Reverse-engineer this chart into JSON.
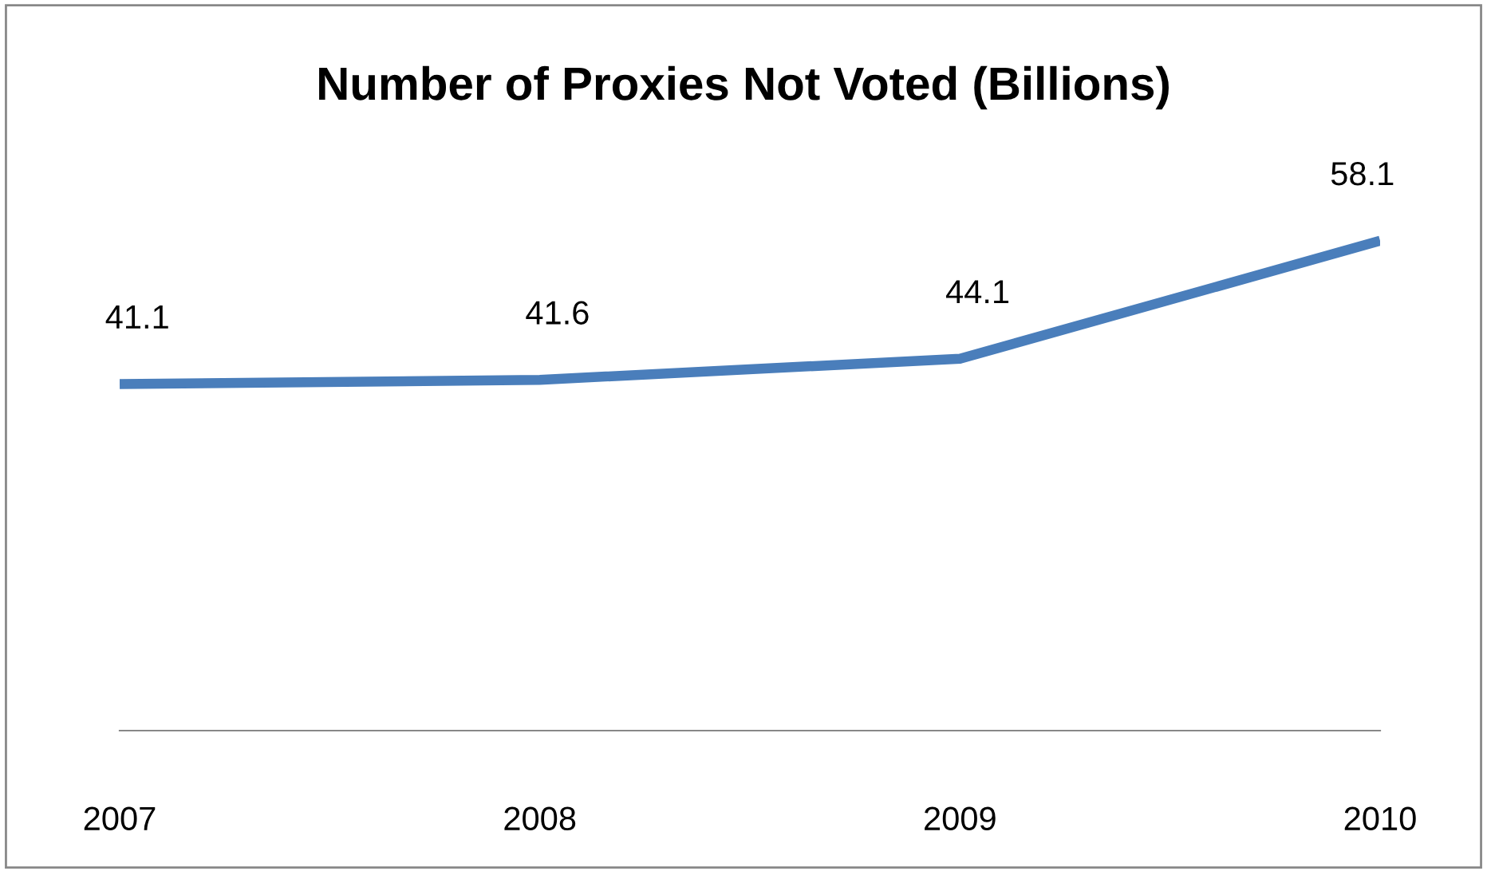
{
  "chart_data": {
    "type": "line",
    "title": "Number of Proxies Not Voted (Billions)",
    "categories": [
      "2007",
      "2008",
      "2009",
      "2010"
    ],
    "series": [
      {
        "color": "#4a7ebb",
        "values": [
          41.1,
          41.6,
          44.1,
          58.1
        ]
      }
    ],
    "data_labels": true,
    "grid": false,
    "legend": false,
    "marker": "none",
    "line_style": "solid"
  }
}
